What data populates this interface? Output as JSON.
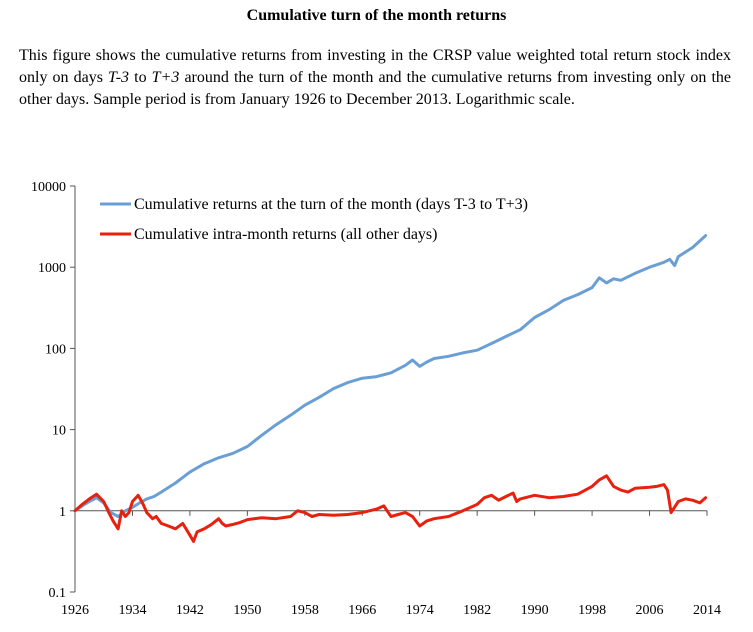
{
  "title": "Cumulative turn of the month returns",
  "caption": {
    "part1": "This figure shows the cumulative returns from investing in the CRSP value weighted total return stock index only on days ",
    "em1": "T-3",
    "part2": " to ",
    "em2": "T+3",
    "part3": " around the turn of the month and the cumulative returns from investing only on the other days. Sample period is from January 1926 to December 2013. Logarithmic scale."
  },
  "chart_data": {
    "type": "line",
    "yscale": "log",
    "ylim": [
      0.1,
      10000
    ],
    "xlim": [
      1926,
      2014
    ],
    "yticks": [
      "0.1",
      "1",
      "10",
      "100",
      "1000",
      "10000"
    ],
    "xticks": [
      "1926",
      "1934",
      "1942",
      "1950",
      "1958",
      "1966",
      "1974",
      "1982",
      "1990",
      "1998",
      "2006",
      "2014"
    ],
    "legend_position": "top-left",
    "grid": false,
    "series": [
      {
        "name": "Cumulative returns at the turn of the month (days T-3 to T+3)",
        "color": "#6a9fd6",
        "x": [
          1926,
          1927,
          1928,
          1929,
          1930,
          1931,
          1932,
          1933,
          1934,
          1935,
          1936,
          1937,
          1938,
          1940,
          1942,
          1944,
          1946,
          1948,
          1950,
          1952,
          1954,
          1956,
          1958,
          1960,
          1962,
          1964,
          1966,
          1968,
          1970,
          1972,
          1973,
          1974,
          1975,
          1976,
          1978,
          1980,
          1982,
          1984,
          1986,
          1988,
          1990,
          1992,
          1994,
          1996,
          1998,
          1999,
          2000,
          2001,
          2002,
          2004,
          2006,
          2008,
          2008.8,
          2009.5,
          2010,
          2012,
          2013.8
        ],
        "values": [
          1.0,
          1.15,
          1.3,
          1.45,
          1.25,
          0.95,
          0.85,
          1.0,
          1.1,
          1.25,
          1.4,
          1.5,
          1.7,
          2.2,
          3.0,
          3.8,
          4.5,
          5.1,
          6.2,
          8.5,
          11.5,
          15,
          20,
          25,
          32,
          38,
          43,
          45,
          50,
          62,
          72,
          60,
          68,
          75,
          80,
          88,
          95,
          115,
          140,
          170,
          240,
          300,
          390,
          460,
          560,
          740,
          640,
          720,
          690,
          840,
          1000,
          1150,
          1250,
          1050,
          1350,
          1750,
          2450
        ]
      },
      {
        "name": "Cumulative intra-month returns (all other days)",
        "color": "#e8200e",
        "x": [
          1926,
          1927,
          1928,
          1929,
          1930,
          1930.7,
          1931.3,
          1932,
          1932.5,
          1933,
          1933.5,
          1934,
          1934.8,
          1935.5,
          1936,
          1936.8,
          1937.3,
          1938,
          1939,
          1940,
          1941,
          1942,
          1942.5,
          1943,
          1944,
          1945,
          1946,
          1946.5,
          1947,
          1948,
          1949,
          1950,
          1952,
          1954,
          1956,
          1957,
          1958,
          1959,
          1960,
          1962,
          1964,
          1966,
          1968,
          1969,
          1970,
          1971,
          1972,
          1973,
          1974,
          1975,
          1976,
          1978,
          1980,
          1982,
          1983,
          1984,
          1985,
          1986,
          1987,
          1987.5,
          1988,
          1990,
          1992,
          1994,
          1996,
          1998,
          1999,
          2000,
          2001,
          2002,
          2003,
          2004,
          2006,
          2007,
          2008,
          2008.5,
          2009,
          2010,
          2011,
          2012,
          2013,
          2013.8
        ],
        "values": [
          1.0,
          1.2,
          1.4,
          1.6,
          1.3,
          0.95,
          0.75,
          0.6,
          1.0,
          0.85,
          0.95,
          1.3,
          1.55,
          1.2,
          0.95,
          0.8,
          0.85,
          0.7,
          0.65,
          0.6,
          0.7,
          0.5,
          0.42,
          0.55,
          0.6,
          0.68,
          0.8,
          0.7,
          0.65,
          0.68,
          0.72,
          0.78,
          0.82,
          0.8,
          0.85,
          1.0,
          0.95,
          0.85,
          0.9,
          0.88,
          0.9,
          0.95,
          1.05,
          1.15,
          0.85,
          0.9,
          0.95,
          0.85,
          0.65,
          0.75,
          0.8,
          0.85,
          1.0,
          1.2,
          1.45,
          1.55,
          1.35,
          1.5,
          1.65,
          1.3,
          1.4,
          1.55,
          1.45,
          1.5,
          1.6,
          2.0,
          2.4,
          2.7,
          2.0,
          1.8,
          1.7,
          1.9,
          1.95,
          2.0,
          2.1,
          1.8,
          0.95,
          1.3,
          1.4,
          1.35,
          1.25,
          1.45
        ]
      }
    ]
  }
}
